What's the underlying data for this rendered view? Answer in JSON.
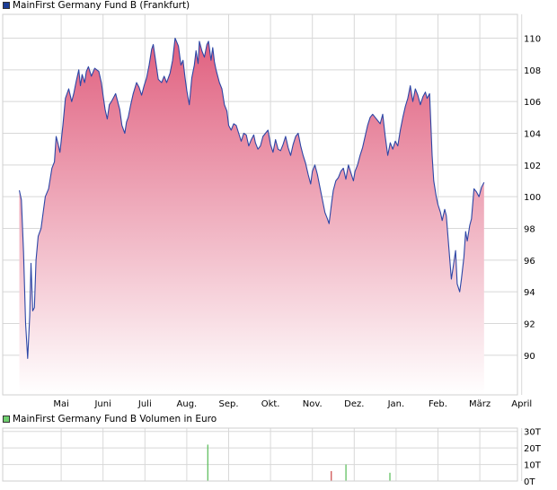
{
  "colors": {
    "price_line": "#2d46a6",
    "fill_top": "#e0607f",
    "fill_bottom": "#ffffff",
    "grid": "#d8d8d8",
    "volume_green": "#55bb55",
    "volume_red": "#cc4444",
    "price_legend_swatch": "#1a3c96",
    "volume_legend_swatch": "#6fcf6f"
  },
  "chart_data": [
    {
      "type": "area",
      "title": "MainFirst Germany Fund B (Frankfurt)",
      "legend_placement": "top-left",
      "grid": true,
      "y_axis_side": "right",
      "ylim": [
        87.5,
        111.5
      ],
      "y_ticks": [
        90,
        92,
        94,
        96,
        98,
        100,
        102,
        104,
        106,
        108,
        110
      ],
      "x_range": [
        0,
        12.1
      ],
      "x_ticks": [
        {
          "label": "Mai",
          "pos": 1
        },
        {
          "label": "Juni",
          "pos": 2
        },
        {
          "label": "Juli",
          "pos": 3
        },
        {
          "label": "Aug.",
          "pos": 4
        },
        {
          "label": "Sep.",
          "pos": 5
        },
        {
          "label": "Okt.",
          "pos": 6
        },
        {
          "label": "Nov.",
          "pos": 7
        },
        {
          "label": "Dez.",
          "pos": 8
        },
        {
          "label": "Jan.",
          "pos": 9
        },
        {
          "label": "Feb.",
          "pos": 10
        },
        {
          "label": "März",
          "pos": 11
        },
        {
          "label": "April",
          "pos": 12
        }
      ],
      "series": [
        {
          "name": "MainFirst Germany Fund B (Frankfurt)",
          "points": [
            [
              0.0,
              100.4
            ],
            [
              0.05,
              99.8
            ],
            [
              0.1,
              96.5
            ],
            [
              0.15,
              92.0
            ],
            [
              0.2,
              89.8
            ],
            [
              0.25,
              92.5
            ],
            [
              0.28,
              95.8
            ],
            [
              0.32,
              92.8
            ],
            [
              0.36,
              93.0
            ],
            [
              0.4,
              96.0
            ],
            [
              0.45,
              97.5
            ],
            [
              0.52,
              98.0
            ],
            [
              0.58,
              99.2
            ],
            [
              0.62,
              100.0
            ],
            [
              0.7,
              100.5
            ],
            [
              0.78,
              101.8
            ],
            [
              0.84,
              102.2
            ],
            [
              0.88,
              103.8
            ],
            [
              0.93,
              103.3
            ],
            [
              0.97,
              102.8
            ],
            [
              1.0,
              103.5
            ],
            [
              1.04,
              104.5
            ],
            [
              1.1,
              106.2
            ],
            [
              1.18,
              106.8
            ],
            [
              1.25,
              106.0
            ],
            [
              1.3,
              106.5
            ],
            [
              1.36,
              107.3
            ],
            [
              1.42,
              108.0
            ],
            [
              1.46,
              107.0
            ],
            [
              1.5,
              107.7
            ],
            [
              1.56,
              107.2
            ],
            [
              1.6,
              107.9
            ],
            [
              1.65,
              108.2
            ],
            [
              1.72,
              107.6
            ],
            [
              1.8,
              108.1
            ],
            [
              1.9,
              107.9
            ],
            [
              1.96,
              107.2
            ],
            [
              2.0,
              106.4
            ],
            [
              2.05,
              105.5
            ],
            [
              2.1,
              104.9
            ],
            [
              2.15,
              105.8
            ],
            [
              2.2,
              106.0
            ],
            [
              2.3,
              106.5
            ],
            [
              2.4,
              105.5
            ],
            [
              2.45,
              104.5
            ],
            [
              2.52,
              104.0
            ],
            [
              2.56,
              104.7
            ],
            [
              2.6,
              105.0
            ],
            [
              2.66,
              105.8
            ],
            [
              2.72,
              106.5
            ],
            [
              2.8,
              107.2
            ],
            [
              2.86,
              106.9
            ],
            [
              2.92,
              106.4
            ],
            [
              2.98,
              107.0
            ],
            [
              3.04,
              107.5
            ],
            [
              3.1,
              108.3
            ],
            [
              3.16,
              109.3
            ],
            [
              3.2,
              109.6
            ],
            [
              3.26,
              108.5
            ],
            [
              3.32,
              107.4
            ],
            [
              3.4,
              107.2
            ],
            [
              3.46,
              107.6
            ],
            [
              3.52,
              107.2
            ],
            [
              3.6,
              107.8
            ],
            [
              3.66,
              108.6
            ],
            [
              3.72,
              110.0
            ],
            [
              3.8,
              109.5
            ],
            [
              3.86,
              108.3
            ],
            [
              3.91,
              108.6
            ],
            [
              3.96,
              107.5
            ],
            [
              4.0,
              106.7
            ],
            [
              4.06,
              105.8
            ],
            [
              4.12,
              107.5
            ],
            [
              4.18,
              108.3
            ],
            [
              4.22,
              109.2
            ],
            [
              4.27,
              108.4
            ],
            [
              4.3,
              109.8
            ],
            [
              4.36,
              109.2
            ],
            [
              4.42,
              108.8
            ],
            [
              4.48,
              109.6
            ],
            [
              4.52,
              109.8
            ],
            [
              4.58,
              108.6
            ],
            [
              4.62,
              109.4
            ],
            [
              4.66,
              108.5
            ],
            [
              4.7,
              108.0
            ],
            [
              4.78,
              107.2
            ],
            [
              4.84,
              106.8
            ],
            [
              4.9,
              105.8
            ],
            [
              4.96,
              105.4
            ],
            [
              5.0,
              104.5
            ],
            [
              5.06,
              104.2
            ],
            [
              5.12,
              104.6
            ],
            [
              5.18,
              104.5
            ],
            [
              5.24,
              104.0
            ],
            [
              5.3,
              103.5
            ],
            [
              5.36,
              104.0
            ],
            [
              5.42,
              103.9
            ],
            [
              5.48,
              103.2
            ],
            [
              5.54,
              103.6
            ],
            [
              5.6,
              103.9
            ],
            [
              5.64,
              103.4
            ],
            [
              5.7,
              103.0
            ],
            [
              5.76,
              103.2
            ],
            [
              5.82,
              103.8
            ],
            [
              5.88,
              104.0
            ],
            [
              5.94,
              104.2
            ],
            [
              6.0,
              103.3
            ],
            [
              6.06,
              102.8
            ],
            [
              6.12,
              103.6
            ],
            [
              6.18,
              103.0
            ],
            [
              6.24,
              102.9
            ],
            [
              6.3,
              103.3
            ],
            [
              6.36,
              103.8
            ],
            [
              6.42,
              103.1
            ],
            [
              6.48,
              102.6
            ],
            [
              6.54,
              103.3
            ],
            [
              6.6,
              103.8
            ],
            [
              6.66,
              104.0
            ],
            [
              6.72,
              103.2
            ],
            [
              6.78,
              102.6
            ],
            [
              6.84,
              102.1
            ],
            [
              6.9,
              101.4
            ],
            [
              6.96,
              100.8
            ],
            [
              7.0,
              101.6
            ],
            [
              7.06,
              102.0
            ],
            [
              7.12,
              101.4
            ],
            [
              7.18,
              100.6
            ],
            [
              7.24,
              99.8
            ],
            [
              7.3,
              99.0
            ],
            [
              7.36,
              98.6
            ],
            [
              7.4,
              98.3
            ],
            [
              7.46,
              99.6
            ],
            [
              7.5,
              100.4
            ],
            [
              7.56,
              101.0
            ],
            [
              7.62,
              101.2
            ],
            [
              7.68,
              101.6
            ],
            [
              7.74,
              101.8
            ],
            [
              7.8,
              101.1
            ],
            [
              7.86,
              102.0
            ],
            [
              7.92,
              101.5
            ],
            [
              7.98,
              101.0
            ],
            [
              8.02,
              101.6
            ],
            [
              8.08,
              102.0
            ],
            [
              8.14,
              102.6
            ],
            [
              8.2,
              103.1
            ],
            [
              8.26,
              103.8
            ],
            [
              8.32,
              104.5
            ],
            [
              8.38,
              105.0
            ],
            [
              8.44,
              105.2
            ],
            [
              8.5,
              105.0
            ],
            [
              8.56,
              104.8
            ],
            [
              8.62,
              104.6
            ],
            [
              8.68,
              105.2
            ],
            [
              8.74,
              103.8
            ],
            [
              8.8,
              102.6
            ],
            [
              8.86,
              103.4
            ],
            [
              8.92,
              103.0
            ],
            [
              8.98,
              103.5
            ],
            [
              9.04,
              103.2
            ],
            [
              9.1,
              104.2
            ],
            [
              9.16,
              105.0
            ],
            [
              9.22,
              105.7
            ],
            [
              9.28,
              106.2
            ],
            [
              9.34,
              107.0
            ],
            [
              9.4,
              106.0
            ],
            [
              9.46,
              106.8
            ],
            [
              9.52,
              106.4
            ],
            [
              9.58,
              105.8
            ],
            [
              9.64,
              106.3
            ],
            [
              9.7,
              106.6
            ],
            [
              9.74,
              106.2
            ],
            [
              9.8,
              106.5
            ],
            [
              9.86,
              102.6
            ],
            [
              9.9,
              101.0
            ],
            [
              9.96,
              100.0
            ],
            [
              10.0,
              99.5
            ],
            [
              10.06,
              99.0
            ],
            [
              10.1,
              98.5
            ],
            [
              10.16,
              99.2
            ],
            [
              10.2,
              98.8
            ],
            [
              10.26,
              96.8
            ],
            [
              10.32,
              94.8
            ],
            [
              10.36,
              95.5
            ],
            [
              10.42,
              96.6
            ],
            [
              10.46,
              94.5
            ],
            [
              10.52,
              94.0
            ],
            [
              10.56,
              94.8
            ],
            [
              10.62,
              96.2
            ],
            [
              10.66,
              97.8
            ],
            [
              10.7,
              97.2
            ],
            [
              10.76,
              98.2
            ],
            [
              10.8,
              98.6
            ],
            [
              10.86,
              100.5
            ],
            [
              10.92,
              100.3
            ],
            [
              10.98,
              100.0
            ],
            [
              11.04,
              100.6
            ],
            [
              11.1,
              100.9
            ]
          ]
        }
      ]
    },
    {
      "type": "bar",
      "title": "MainFirst Germany Fund B Volumen in Euro",
      "legend_placement": "top-left",
      "grid": true,
      "y_axis_side": "right",
      "ylim": [
        0,
        32
      ],
      "y_ticks": [
        {
          "label": "0T",
          "value": 0
        },
        {
          "label": "10T",
          "value": 10
        },
        {
          "label": "20T",
          "value": 20
        },
        {
          "label": "30T",
          "value": 30
        }
      ],
      "bars": [
        {
          "x": 4.5,
          "value": 22,
          "status": "up"
        },
        {
          "x": 7.45,
          "value": 6,
          "status": "down"
        },
        {
          "x": 7.8,
          "value": 10,
          "status": "up"
        },
        {
          "x": 8.85,
          "value": 5,
          "status": "up"
        }
      ]
    }
  ]
}
